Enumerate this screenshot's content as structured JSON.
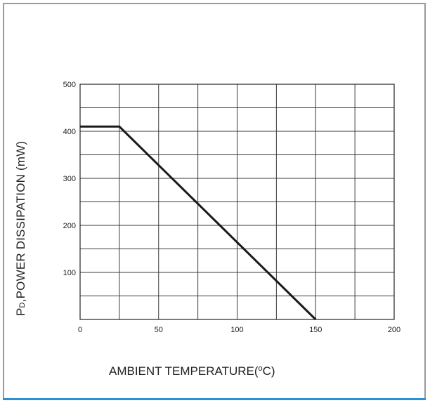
{
  "chart_data": {
    "type": "line",
    "x_axis": {
      "label_prefix": "AMBIENT TEMPERATURE(",
      "label_degree": "o",
      "label_suffix": "C)",
      "range": [
        0,
        200
      ],
      "ticks": [
        0,
        50,
        100,
        150,
        200
      ],
      "minor_gridlines": [
        0,
        25,
        50,
        75,
        100,
        125,
        150,
        175,
        200
      ]
    },
    "y_axis": {
      "label_p": "P",
      "label_sub": "D",
      "label_rest": ",POWER DISSIPATION (mW)",
      "range": [
        0,
        500
      ],
      "ticks": [
        100,
        200,
        300,
        400,
        500
      ],
      "minor_gridlines": [
        0,
        50,
        100,
        150,
        200,
        250,
        300,
        350,
        400,
        450,
        500
      ]
    },
    "grid": true,
    "series": [
      {
        "x": [
          0,
          25,
          150
        ],
        "y": [
          410,
          410,
          0
        ],
        "color": "#1a1a1a"
      }
    ]
  }
}
